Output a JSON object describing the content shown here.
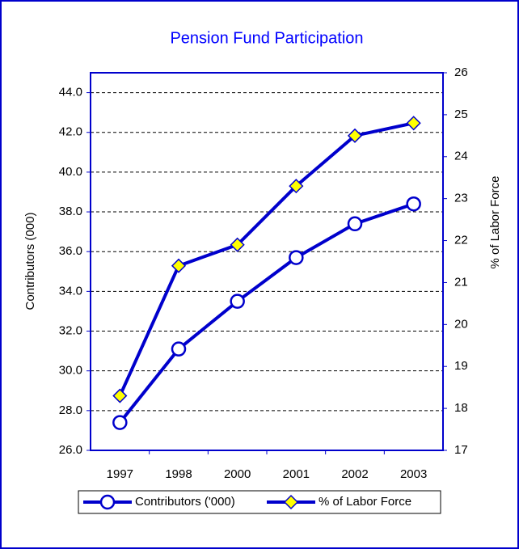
{
  "chart_data": {
    "type": "line",
    "title": "Pension Fund Participation",
    "y_label": "Contributors (000)",
    "y2_label": "% of Labor Force",
    "categories": [
      "1997",
      "1998",
      "2000",
      "2001",
      "2002",
      "2003"
    ],
    "series": [
      {
        "name": "Contributors ('000)",
        "color": "#0000cc",
        "marker": "circle",
        "values": [
          27.4,
          31.1,
          33.5,
          35.7,
          37.4,
          38.4
        ]
      },
      {
        "name": "% of Labor Force",
        "color": "#0000cc",
        "marker": "diamond",
        "marker_color": "#ffff00",
        "axis": "y2",
        "values": [
          18.3,
          21.4,
          21.9,
          23.3,
          24.5,
          24.8
        ]
      }
    ],
    "ylim": [
      26,
      45
    ],
    "yticks": [
      {
        "value": 26,
        "label": "26.0"
      },
      {
        "value": 28,
        "label": "28.0"
      },
      {
        "value": 30,
        "label": "30.0"
      },
      {
        "value": 32,
        "label": "32.0"
      },
      {
        "value": 34,
        "label": "34.0"
      },
      {
        "value": 36,
        "label": "36.0"
      },
      {
        "value": 38,
        "label": "38.0"
      },
      {
        "value": 40,
        "label": "40.0"
      },
      {
        "value": 42,
        "label": "42.0"
      },
      {
        "value": 44,
        "label": "44.0"
      }
    ],
    "y2lim": [
      17,
      26
    ],
    "y2ticks": [
      17,
      18,
      19,
      20,
      21,
      22,
      23,
      24,
      25,
      26
    ],
    "grid": true,
    "legend": "bottom"
  }
}
